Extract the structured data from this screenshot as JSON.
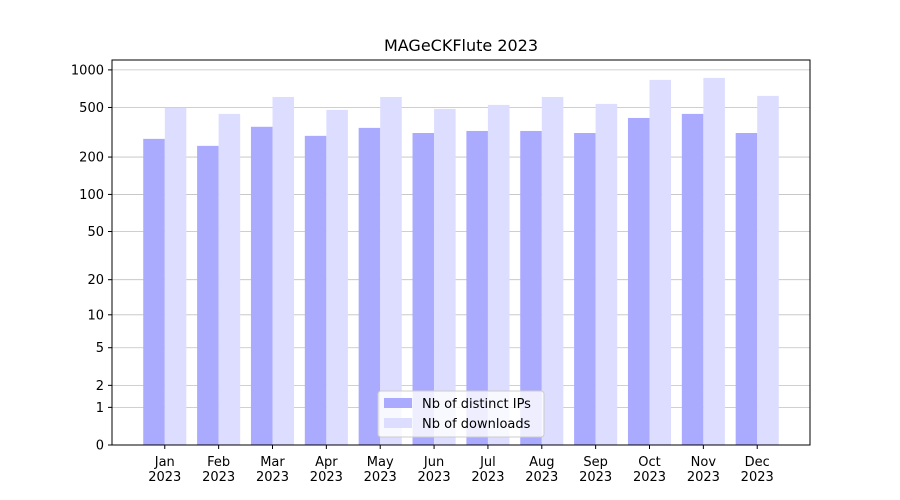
{
  "chart_data": {
    "type": "bar",
    "title": "MAGeCKFlute 2023",
    "categories": [
      "Jan\n2023",
      "Feb\n2023",
      "Mar\n2023",
      "Apr\n2023",
      "May\n2023",
      "Jun\n2023",
      "Jul\n2023",
      "Aug\n2023",
      "Sep\n2023",
      "Oct\n2023",
      "Nov\n2023",
      "Dec\n2023"
    ],
    "series": [
      {
        "name": "Nb of distinct IPs",
        "color": "#aaaaff",
        "values": [
          280,
          246,
          350,
          296,
          343,
          312,
          324,
          324,
          312,
          412,
          444,
          312
        ]
      },
      {
        "name": "Nb of downloads",
        "color": "#ddddff",
        "values": [
          496,
          444,
          607,
          478,
          607,
          487,
          524,
          607,
          534,
          831,
          862,
          619
        ]
      }
    ],
    "yscale": "log1p",
    "ylim": [
      0,
      1200
    ],
    "yticks": [
      0,
      1,
      2,
      5,
      10,
      20,
      50,
      100,
      200,
      500,
      1000
    ],
    "grid": true,
    "legend": "lower center"
  }
}
